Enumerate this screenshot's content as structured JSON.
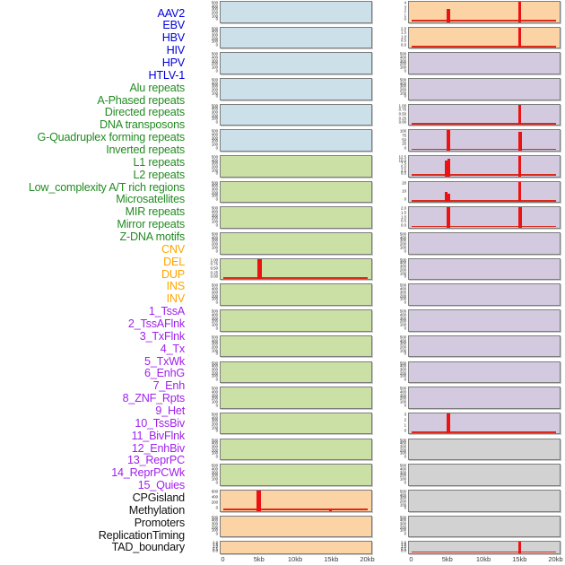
{
  "palette": {
    "label_virus": "#0000dd",
    "label_repeat": "#228b22",
    "label_sv": "#ffa500",
    "label_state": "#a020f0",
    "label_other": "#111111",
    "bg_virus": "#cce0ea",
    "bg_repeat": "#cbe0a5",
    "bg_sv": "#fbd3a4",
    "bg_state": "#d4cae0",
    "bg_other": "#d2d2d2",
    "bar_red": "#ed1212",
    "baseline_red": "#da2a1a",
    "box_border": "#7d7d7d",
    "tick_text": "#222222",
    "axis_text": "#3c3c3c"
  },
  "chart_data": {
    "type": "bar",
    "description": "Small-multiple genomic feature density profiles around a locus; 44 tracks in two columns, red bars mark feature density peaks near 5kb and 15kb",
    "x_ticks": [
      "0",
      "5kb",
      "10kb",
      "15kb",
      "20kb"
    ],
    "x_tick_kb": [
      0,
      5,
      10,
      15,
      20
    ],
    "x_range_kb": [
      0,
      21
    ],
    "grid": false,
    "legend": false,
    "columns": [
      {
        "side": "left",
        "tracks": [
          {
            "label": "AAV2",
            "cat": "virus",
            "yticks": [
              "500",
              "400",
              "300",
              "200",
              "100",
              "0"
            ],
            "baseline": false,
            "bars": []
          },
          {
            "label": "EBV",
            "cat": "virus",
            "yticks": [
              "500",
              "400",
              "300",
              "200",
              "100",
              "0"
            ],
            "baseline": false,
            "bars": []
          },
          {
            "label": "HBV",
            "cat": "virus",
            "yticks": [
              "500",
              "400",
              "300",
              "200",
              "100",
              "0"
            ],
            "baseline": false,
            "bars": []
          },
          {
            "label": "HIV",
            "cat": "virus",
            "yticks": [
              "500",
              "400",
              "300",
              "200",
              "100",
              "0"
            ],
            "baseline": false,
            "bars": []
          },
          {
            "label": "HPV",
            "cat": "virus",
            "yticks": [
              "500",
              "400",
              "300",
              "200",
              "100",
              "0"
            ],
            "baseline": false,
            "bars": []
          },
          {
            "label": "HTLV-1",
            "cat": "virus",
            "yticks": [
              "500",
              "400",
              "300",
              "200",
              "100",
              "0"
            ],
            "baseline": false,
            "bars": []
          },
          {
            "label": "Alu repeats",
            "cat": "repeat",
            "yticks": [
              "500",
              "400",
              "300",
              "200",
              "100",
              "0"
            ],
            "baseline": false,
            "bars": []
          },
          {
            "label": "A-Phased repeats",
            "cat": "repeat",
            "yticks": [
              "500",
              "400",
              "300",
              "200",
              "100",
              "0"
            ],
            "baseline": false,
            "bars": []
          },
          {
            "label": "Directed repeats",
            "cat": "repeat",
            "yticks": [
              "500",
              "400",
              "300",
              "200",
              "100",
              "0"
            ],
            "baseline": false,
            "bars": []
          },
          {
            "label": "DNA transposons",
            "cat": "repeat",
            "yticks": [
              "500",
              "400",
              "300",
              "200",
              "100",
              "0"
            ],
            "baseline": false,
            "bars": []
          },
          {
            "label": "G-Quadruplex forming repeats",
            "cat": "repeat",
            "yticks": [
              "1.00",
              "0.75",
              "0.50",
              "0.25",
              "0.00"
            ],
            "baseline": true,
            "bars": [
              {
                "x": 4.8,
                "v": 1.05,
                "w": 0.6
              }
            ]
          },
          {
            "label": "Inverted repeats",
            "cat": "repeat",
            "yticks": [
              "500",
              "400",
              "300",
              "200",
              "100",
              "0"
            ],
            "baseline": false,
            "bars": []
          },
          {
            "label": "L1 repeats",
            "cat": "repeat",
            "yticks": [
              "500",
              "400",
              "300",
              "200",
              "100",
              "0"
            ],
            "baseline": false,
            "bars": []
          },
          {
            "label": "L2 repeats",
            "cat": "repeat",
            "yticks": [
              "500",
              "400",
              "300",
              "200",
              "100",
              "0"
            ],
            "baseline": false,
            "bars": []
          },
          {
            "label": "Low_complexity A/T rich regions",
            "cat": "repeat",
            "yticks": [
              "500",
              "400",
              "300",
              "200",
              "100",
              "0"
            ],
            "baseline": false,
            "bars": []
          },
          {
            "label": "Microsatellites",
            "cat": "repeat",
            "yticks": [
              "500",
              "400",
              "300",
              "200",
              "100",
              "0"
            ],
            "baseline": false,
            "bars": []
          },
          {
            "label": "MIR repeats",
            "cat": "repeat",
            "yticks": [
              "500",
              "400",
              "300",
              "200",
              "100",
              "0"
            ],
            "baseline": false,
            "bars": []
          },
          {
            "label": "Mirror repeats",
            "cat": "repeat",
            "yticks": [
              "500",
              "400",
              "300",
              "200",
              "100",
              "0"
            ],
            "baseline": false,
            "bars": []
          },
          {
            "label": "Z-DNA motifs",
            "cat": "repeat",
            "yticks": [
              "500",
              "400",
              "300",
              "200",
              "100",
              "0"
            ],
            "baseline": false,
            "bars": []
          },
          {
            "label": "CNV",
            "cat": "sv",
            "yticks": [
              "600",
              "400",
              "200",
              "0"
            ],
            "baseline": true,
            "bars": [
              {
                "x": 4.7,
                "v": 700,
                "w": 0.62
              },
              {
                "x": 14.7,
                "v": 45,
                "w": 0.4
              }
            ]
          },
          {
            "label": "DEL",
            "cat": "sv",
            "yticks": [
              "500",
              "400",
              "300",
              "200",
              "100",
              "0"
            ],
            "baseline": false,
            "bars": []
          },
          {
            "label": "DUP",
            "cat": "sv",
            "yticks": [
              "2.0",
              "1.5",
              "1.0",
              "0.5",
              "0.0"
            ],
            "baseline": false,
            "bars": []
          }
        ]
      },
      {
        "side": "right",
        "tracks": [
          {
            "label": "INS",
            "cat": "sv",
            "yticks": [
              "4",
              "3",
              "2",
              "1",
              "0"
            ],
            "baseline": true,
            "bars": [
              {
                "x": 4.9,
                "v": 2.5,
                "w": 0.5
              },
              {
                "x": 14.85,
                "v": 4.4,
                "w": 0.42
              }
            ]
          },
          {
            "label": "INV",
            "cat": "sv",
            "yticks": [
              "2.0",
              "1.5",
              "1.0",
              "0.5",
              "0.0"
            ],
            "baseline": true,
            "bars": [
              {
                "x": 14.85,
                "v": 2.2,
                "w": 0.42
              }
            ]
          },
          {
            "label": "1_TssA",
            "cat": "state",
            "yticks": [
              "500",
              "400",
              "300",
              "200",
              "100",
              "0"
            ],
            "baseline": false,
            "bars": []
          },
          {
            "label": "2_TssAFlnk",
            "cat": "state",
            "yticks": [
              "500",
              "400",
              "300",
              "200",
              "100",
              "0"
            ],
            "baseline": false,
            "bars": []
          },
          {
            "label": "3_TxFlnk",
            "cat": "state",
            "yticks": [
              "1.00",
              "0.75",
              "0.50",
              "0.25",
              "0.00"
            ],
            "baseline": true,
            "bars": [
              {
                "x": 14.85,
                "v": 1.1,
                "w": 0.42
              }
            ]
          },
          {
            "label": "4_Tx",
            "cat": "state",
            "yticks": [
              "100",
              "75",
              "50",
              "25",
              "0"
            ],
            "baseline": true,
            "bars": [
              {
                "x": 4.9,
                "v": 110,
                "w": 0.5
              },
              {
                "x": 14.85,
                "v": 95,
                "w": 0.45
              }
            ]
          },
          {
            "label": "5_TxWk",
            "cat": "state",
            "yticks": [
              "12.5",
              "10.0",
              "7.5",
              "5.0",
              "2.5",
              "0.0"
            ],
            "baseline": true,
            "bars": [
              {
                "x": 4.7,
                "v": 10.0,
                "w": 0.35
              },
              {
                "x": 5.05,
                "v": 10.8,
                "w": 0.33
              },
              {
                "x": 14.85,
                "v": 13,
                "w": 0.42
              }
            ]
          },
          {
            "label": "6_EnhG",
            "cat": "state",
            "yticks": [
              "20",
              "10",
              "0"
            ],
            "baseline": true,
            "bars": [
              {
                "x": 4.7,
                "v": 9.7,
                "w": 0.35
              },
              {
                "x": 5.05,
                "v": 8.6,
                "w": 0.33
              },
              {
                "x": 14.85,
                "v": 21,
                "w": 0.42
              }
            ]
          },
          {
            "label": "7_Enh",
            "cat": "state",
            "yticks": [
              "2.0",
              "1.5",
              "1.0",
              "0.5",
              "0.0"
            ],
            "baseline": true,
            "bars": [
              {
                "x": 4.9,
                "v": 2.2,
                "w": 0.5
              },
              {
                "x": 14.85,
                "v": 2.2,
                "w": 0.45
              }
            ]
          },
          {
            "label": "8_ZNF_Rpts",
            "cat": "state",
            "yticks": [
              "500",
              "400",
              "300",
              "200",
              "100",
              "0"
            ],
            "baseline": false,
            "bars": []
          },
          {
            "label": "9_Het",
            "cat": "state",
            "yticks": [
              "500",
              "400",
              "300",
              "200",
              "100",
              "0"
            ],
            "baseline": false,
            "bars": []
          },
          {
            "label": "10_TssBiv",
            "cat": "state",
            "yticks": [
              "500",
              "400",
              "300",
              "200",
              "100",
              "0"
            ],
            "baseline": false,
            "bars": []
          },
          {
            "label": "11_BivFlnk",
            "cat": "state",
            "yticks": [
              "500",
              "400",
              "300",
              "200",
              "100",
              "0"
            ],
            "baseline": false,
            "bars": []
          },
          {
            "label": "12_EnhBiv",
            "cat": "state",
            "yticks": [
              "500",
              "400",
              "300",
              "200",
              "100",
              "0"
            ],
            "baseline": false,
            "bars": []
          },
          {
            "label": "13_ReprPC",
            "cat": "state",
            "yticks": [
              "500",
              "400",
              "300",
              "200",
              "100",
              "0"
            ],
            "baseline": false,
            "bars": []
          },
          {
            "label": "14_ReprPCWk",
            "cat": "state",
            "yticks": [
              "500",
              "400",
              "300",
              "200",
              "100",
              "0"
            ],
            "baseline": false,
            "bars": []
          },
          {
            "label": "15_Quies",
            "cat": "state",
            "yticks": [
              "3",
              "2",
              "1",
              "0"
            ],
            "baseline": true,
            "bars": [
              {
                "x": 4.9,
                "v": 3.2,
                "w": 0.5
              }
            ]
          },
          {
            "label": "CPGisland",
            "cat": "other",
            "yticks": [
              "500",
              "400",
              "300",
              "200",
              "100",
              "0"
            ],
            "baseline": false,
            "bars": []
          },
          {
            "label": "Methylation",
            "cat": "other",
            "yticks": [
              "500",
              "400",
              "300",
              "200",
              "100",
              "0"
            ],
            "baseline": false,
            "bars": []
          },
          {
            "label": "Promoters",
            "cat": "other",
            "yticks": [
              "500",
              "400",
              "300",
              "200",
              "100",
              "0"
            ],
            "baseline": false,
            "bars": []
          },
          {
            "label": "ReplicationTiming",
            "cat": "other",
            "yticks": [
              "500",
              "400",
              "300",
              "200",
              "100",
              "0"
            ],
            "baseline": false,
            "bars": []
          },
          {
            "label": "TAD_boundary",
            "cat": "other",
            "yticks": [
              "2.0",
              "1.5",
              "1.0",
              "0.5",
              "0.0"
            ],
            "baseline": true,
            "bars": [
              {
                "x": 14.85,
                "v": 2.2,
                "w": 0.42
              }
            ]
          }
        ]
      }
    ]
  }
}
